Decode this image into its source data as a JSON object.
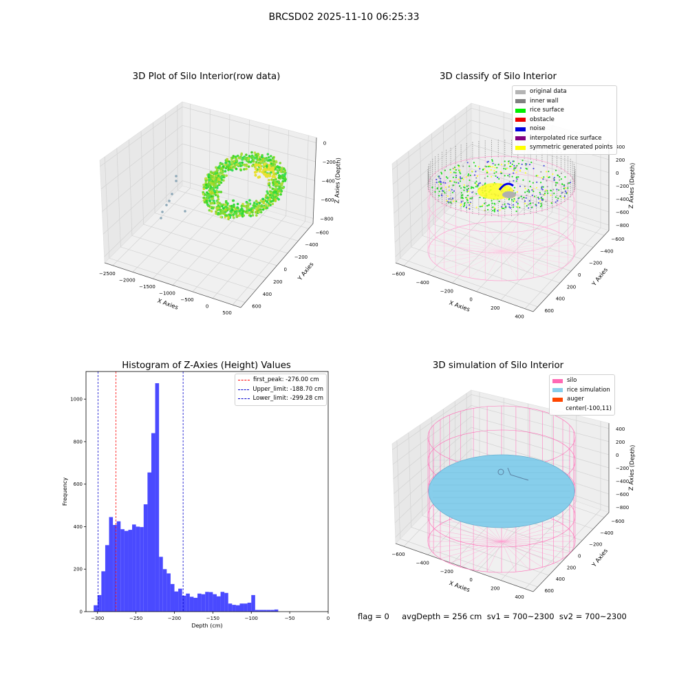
{
  "suptitle": "BRCSD02 2025-11-10 06:25:33",
  "panels": {
    "raw": {
      "title": "3D Plot of Silo Interior(row data)",
      "xlabel": "X Axies",
      "ylabel": "Y Axies",
      "zlabel": "Z Axies (Depth)",
      "xticks": [
        "−2500",
        "−2000",
        "−1500",
        "−1000",
        "−500",
        "0",
        "500"
      ],
      "yticks": [
        "600",
        "400",
        "200",
        "0",
        "−200",
        "−400",
        "−600"
      ],
      "zticks": [
        "0",
        "−200",
        "−400",
        "−600",
        "−800"
      ]
    },
    "classify": {
      "title": "3D classify of Silo Interior",
      "xlabel": "X Axies",
      "ylabel": "Y Axies",
      "zlabel": "Z Axies (Depth)",
      "xticks": [
        "−600",
        "−400",
        "−200",
        "0",
        "200",
        "400"
      ],
      "yticks": [
        "600",
        "400",
        "200",
        "0",
        "−200",
        "−400",
        "−600"
      ],
      "zticks": [
        "400",
        "200",
        "0",
        "−200",
        "−400",
        "−600",
        "−800"
      ],
      "legend": [
        {
          "label": "original data",
          "color": "#b4b4b4"
        },
        {
          "label": "inner wall",
          "color": "#808080"
        },
        {
          "label": "rice surface",
          "color": "#00ee00"
        },
        {
          "label": "obstacle",
          "color": "#ee0000"
        },
        {
          "label": "noise",
          "color": "#0000dd"
        },
        {
          "label": "interpolated rice surface",
          "color": "#800080"
        },
        {
          "label": "symmetric generated points",
          "color": "#ffff00"
        }
      ]
    },
    "simulation": {
      "title": "3D simulation of Silo Interior",
      "xlabel": "X Axies",
      "ylabel": "Y Axies",
      "zlabel": "Z Axies (Depth)",
      "xticks": [
        "−600",
        "−400",
        "−200",
        "0",
        "200",
        "400"
      ],
      "yticks": [
        "600",
        "400",
        "200",
        "0",
        "−200",
        "−400",
        "−600"
      ],
      "zticks": [
        "400",
        "200",
        "0",
        "−200",
        "−400",
        "−600",
        "−800"
      ],
      "legend": [
        {
          "label": "silo",
          "color": "#ff69b4"
        },
        {
          "label": "rice simulation",
          "color": "#87ceeb"
        },
        {
          "label": "auger",
          "color": "#ff4500"
        },
        {
          "label": "center(-100,11)",
          "color": ""
        }
      ]
    }
  },
  "footer": "flag = 0     avgDepth = 256 cm  sv1 = 700~2300  sv2 = 700~2300",
  "chart_data": {
    "type": "bar",
    "title": "Histogram of Z-Axies (Height) Values",
    "xlabel": "Depth (cm)",
    "ylabel": "Frequency",
    "xlim": [
      -315,
      0
    ],
    "ylim": [
      0,
      1130
    ],
    "xticks": [
      -300,
      -250,
      -200,
      -150,
      -100,
      -50,
      0
    ],
    "yticks": [
      0,
      200,
      400,
      600,
      800,
      1000
    ],
    "bin_start": -305,
    "bin_width": 5,
    "values": [
      30,
      78,
      190,
      313,
      445,
      408,
      425,
      388,
      380,
      385,
      410,
      400,
      398,
      505,
      655,
      840,
      1075,
      258,
      200,
      180,
      130,
      95,
      108,
      75,
      85,
      70,
      65,
      85,
      82,
      93,
      92,
      82,
      72,
      93,
      88,
      38,
      32,
      30,
      38,
      38,
      42,
      78,
      8,
      8,
      8,
      8,
      8,
      10
    ],
    "bar_color": "#4a4aff",
    "vlines": [
      {
        "x": -276.0,
        "label": "first_peak: -276.00 cm",
        "color": "#ff0000"
      },
      {
        "x": -188.7,
        "label": "Upper_limit: -188.70 cm",
        "color": "#0000cc"
      },
      {
        "x": -299.28,
        "label": "Lower_limit: -299.28 cm",
        "color": "#0000cc"
      }
    ]
  }
}
